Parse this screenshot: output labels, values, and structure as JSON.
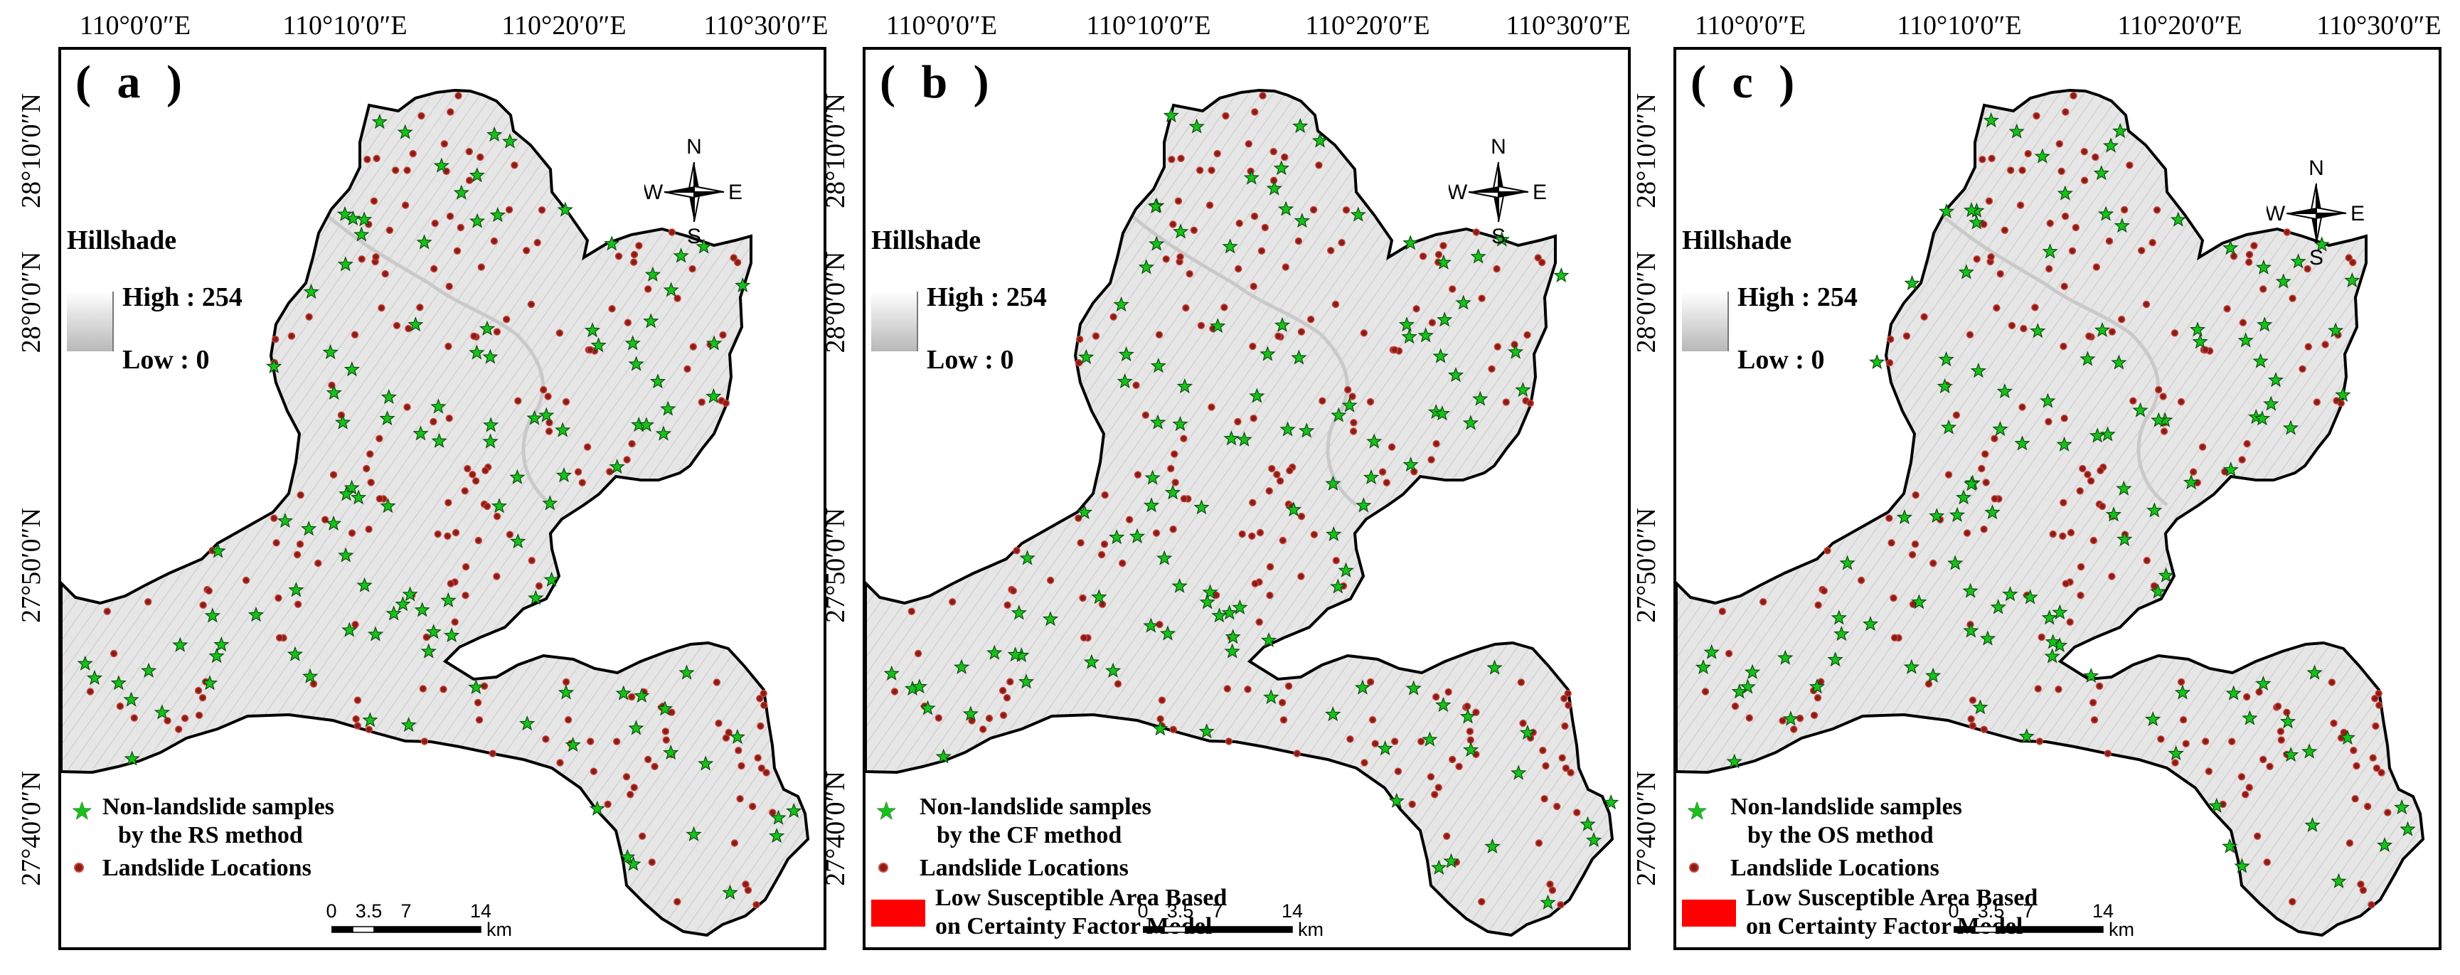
{
  "longitude_labels": [
    "110°0′0″E",
    "110°10′0″E",
    "110°20′0″E",
    "110°30′0″E"
  ],
  "latitude_labels": [
    "28°10′0″N",
    "28°0′0″N",
    "27°50′0″N",
    "27°40′0″N"
  ],
  "panels": [
    {
      "letter": "( a )",
      "legend_star_line1": "Non-landslide samples",
      "legend_star_line2": "by  the RS  method",
      "legend_dot": "Landslide Locations",
      "has_red": false
    },
    {
      "letter": "( b )",
      "legend_star_line1": "Non-landslide samples",
      "legend_star_line2": "by  the CF  method",
      "legend_dot": "Landslide Locations",
      "has_red": true,
      "legend_red_line1": "Low Susceptible Area Based",
      "legend_red_line2": "on Certainty Factor Model"
    },
    {
      "letter": "( c )",
      "legend_star_line1": "Non-landslide samples",
      "legend_star_line2": "by  the OS  method",
      "legend_dot": "Landslide Locations",
      "has_red": true,
      "legend_red_line1": "Low Susceptible Area Based",
      "legend_red_line2": "on Certainty Factor Model"
    }
  ],
  "hillshade": {
    "title": "Hillshade",
    "high": "High : 254",
    "low": "Low : 0"
  },
  "compass": {
    "n": "N",
    "s": "S",
    "e": "E",
    "w": "W"
  },
  "scale": {
    "ticks": [
      "0",
      "3.5",
      "7",
      "14"
    ],
    "unit": "km"
  },
  "colors": {
    "low_susceptible": "#ff0000",
    "non_landslide_star": "#16c21a",
    "landslide_dot": "#8b1d18",
    "terrain": "#e6e6e6"
  }
}
